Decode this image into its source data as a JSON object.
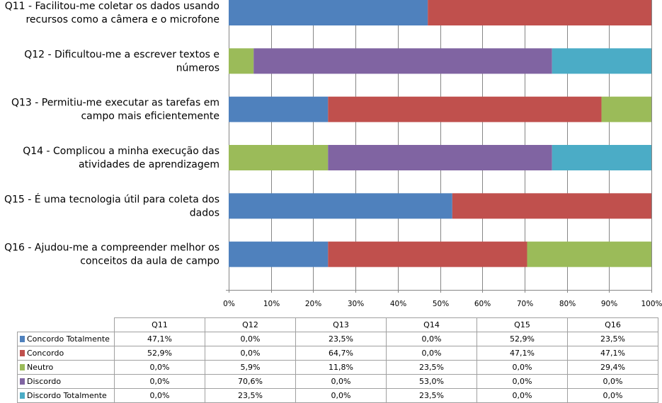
{
  "chart_data": {
    "type": "bar",
    "orientation": "horizontal",
    "stacked": "100%",
    "categories": [
      [
        "Q11 - Facilitou-me coletar os dados usando",
        "recursos como a câmera e o microfone"
      ],
      [
        "Q12 - Dificultou-me a escrever textos e",
        "números"
      ],
      [
        "Q13 - Permitiu-me executar as tarefas em",
        "campo mais eficientemente"
      ],
      [
        "Q14 - Complicou a minha execução das",
        "atividades de aprendizagem"
      ],
      [
        "Q15 - É uma tecnologia útil para coleta dos",
        "dados"
      ],
      [
        "Q16 - Ajudou-me a compreender melhor os",
        "conceitos da aula de campo"
      ]
    ],
    "table_headers": [
      "Q11",
      "Q12",
      "Q13",
      "Q14",
      "Q15",
      "Q16"
    ],
    "series": [
      {
        "name": "Concordo Totalmente",
        "color": "#4F81BD",
        "values": [
          47.1,
          0.0,
          23.5,
          0.0,
          52.9,
          23.5
        ],
        "labels": [
          "47,1%",
          "0,0%",
          "23,5%",
          "0,0%",
          "52,9%",
          "23,5%"
        ]
      },
      {
        "name": "Concordo",
        "color": "#C0504D",
        "values": [
          52.9,
          0.0,
          64.7,
          0.0,
          47.1,
          47.1
        ],
        "labels": [
          "52,9%",
          "0,0%",
          "64,7%",
          "0,0%",
          "47,1%",
          "47,1%"
        ]
      },
      {
        "name": "Neutro",
        "color": "#9BBB59",
        "values": [
          0.0,
          5.9,
          11.8,
          23.5,
          0.0,
          29.4
        ],
        "labels": [
          "0,0%",
          "5,9%",
          "11,8%",
          "23,5%",
          "0,0%",
          "29,4%"
        ]
      },
      {
        "name": "Discordo",
        "color": "#8064A2",
        "values": [
          0.0,
          70.6,
          0.0,
          53.0,
          0.0,
          0.0
        ],
        "labels": [
          "0,0%",
          "70,6%",
          "0,0%",
          "53,0%",
          "0,0%",
          "0,0%"
        ]
      },
      {
        "name": "Discordo Totalmente",
        "color": "#4BACC6",
        "values": [
          0.0,
          23.5,
          0.0,
          23.5,
          0.0,
          0.0
        ],
        "labels": [
          "0,0%",
          "23,5%",
          "0,0%",
          "23,5%",
          "0,0%",
          "0,0%"
        ]
      }
    ],
    "xlim": [
      0,
      100
    ],
    "x_ticks": [
      "0%",
      "10%",
      "20%",
      "30%",
      "40%",
      "50%",
      "60%",
      "70%",
      "80%",
      "90%",
      "100%"
    ],
    "grid": true,
    "legend": "data-table-below"
  }
}
